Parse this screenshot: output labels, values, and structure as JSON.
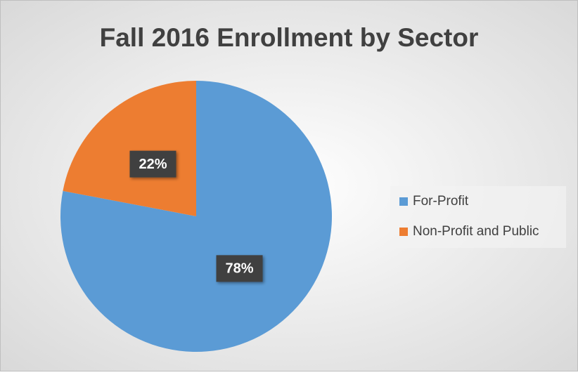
{
  "chart_data": {
    "type": "pie",
    "title": "Fall 2016 Enrollment by Sector",
    "categories": [
      "For-Profit",
      "Non-Profit and Public"
    ],
    "values": [
      78,
      22
    ],
    "value_labels": [
      "78%",
      "22%"
    ],
    "colors": [
      "#5b9bd5",
      "#ed7d31"
    ],
    "legend": "right"
  }
}
